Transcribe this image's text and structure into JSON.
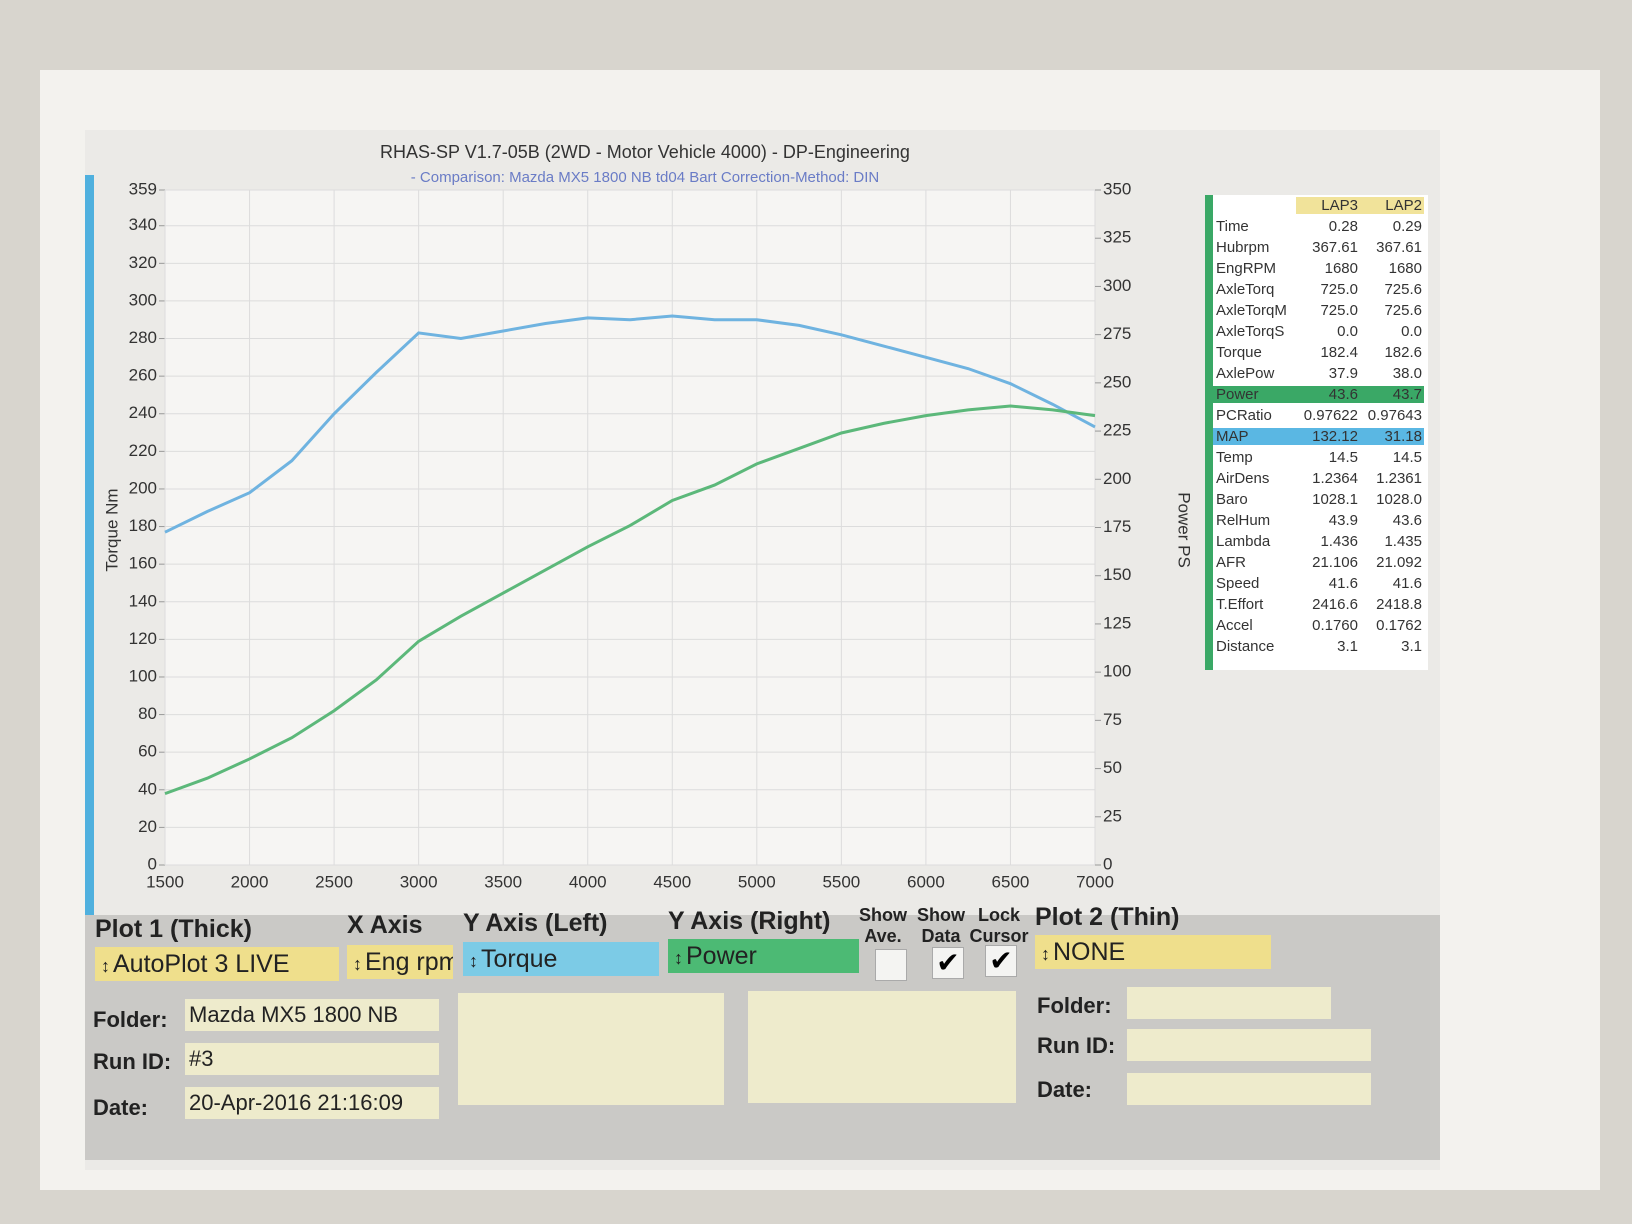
{
  "chart_data": {
    "type": "line",
    "title": "RHAS-SP V1.7-05B  (2WD - Motor Vehicle 4000) - DP-Engineering",
    "subtitle": "- Comparison: Mazda MX5 1800 NB td04 Bart   Correction-Method: DIN",
    "y_label": "Torque Nm",
    "y2_label": "Power PS",
    "x": [
      1500,
      1750,
      2000,
      2250,
      2500,
      2750,
      3000,
      3250,
      3500,
      3750,
      4000,
      4250,
      4500,
      4750,
      5000,
      5250,
      5500,
      5750,
      6000,
      6250,
      6500,
      6750,
      7000
    ],
    "series": [
      {
        "name": "Torque",
        "color": "#6fb3e0",
        "values": [
          177,
          188,
          198,
          215,
          240,
          262,
          283,
          280,
          284,
          288,
          291,
          290,
          292,
          290,
          290,
          287,
          282,
          276,
          270,
          264,
          256,
          245,
          233
        ]
      },
      {
        "name": "Power",
        "color": "#5cb87a",
        "axis": "y2",
        "values": [
          37,
          45,
          55,
          66,
          80,
          96,
          116,
          129,
          141,
          153,
          165,
          176,
          189,
          197,
          208,
          216,
          224,
          229,
          233,
          236,
          238,
          236,
          233
        ]
      }
    ],
    "xlim": [
      1500,
      7000
    ],
    "xticks": [
      1500,
      2000,
      2500,
      3000,
      3500,
      4000,
      4500,
      5000,
      5500,
      6000,
      6500,
      7000
    ],
    "ylim": [
      0,
      359
    ],
    "yticks": [
      0,
      20,
      40,
      60,
      80,
      100,
      120,
      140,
      160,
      180,
      200,
      220,
      240,
      260,
      280,
      300,
      320,
      340,
      359
    ],
    "y2lim": [
      0,
      350
    ],
    "y2ticks": [
      0,
      25,
      50,
      75,
      100,
      125,
      150,
      175,
      200,
      225,
      250,
      275,
      300,
      325,
      350
    ],
    "grid": true
  },
  "table": {
    "headers": [
      "LAP3",
      "LAP2"
    ],
    "rows": [
      [
        "Time",
        "0.28",
        "0.29"
      ],
      [
        "Hubrpm",
        "367.61",
        "367.61"
      ],
      [
        "EngRPM",
        "1680",
        "1680"
      ],
      [
        "AxleTorq",
        "725.0",
        "725.6"
      ],
      [
        "AxleTorqM",
        "725.0",
        "725.6"
      ],
      [
        "AxleTorqS",
        "0.0",
        "0.0"
      ],
      [
        "Torque",
        "182.4",
        "182.6"
      ],
      [
        "AxlePow",
        "37.9",
        "38.0"
      ],
      [
        "Power",
        "43.6",
        "43.7"
      ],
      [
        "PCRatio",
        "0.97622",
        "0.97643"
      ],
      [
        "MAP",
        "132.12",
        "31.18"
      ],
      [
        "Temp",
        "14.5",
        "14.5"
      ],
      [
        "AirDens",
        "1.2364",
        "1.2361"
      ],
      [
        "Baro",
        "1028.1",
        "1028.0"
      ],
      [
        "RelHum",
        "43.9",
        "43.6"
      ],
      [
        "Lambda",
        "1.436",
        "1.435"
      ],
      [
        "AFR",
        "21.106",
        "21.092"
      ],
      [
        "Speed",
        "41.6",
        "41.6"
      ],
      [
        "T.Effort",
        "2416.6",
        "2418.8"
      ],
      [
        "Accel",
        "0.1760",
        "0.1762"
      ],
      [
        "Distance",
        "3.1",
        "3.1"
      ]
    ]
  },
  "controls": {
    "plot1": {
      "label": "Plot 1 (Thick)",
      "value": "AutoPlot 3 LIVE"
    },
    "x_axis": {
      "label": "X Axis",
      "value": "Eng rpm"
    },
    "y_left": {
      "label": "Y Axis (Left)",
      "value": "Torque"
    },
    "y_right": {
      "label": "Y Axis (Right)",
      "value": "Power"
    },
    "show_ave": {
      "label": "Show Ave.",
      "checked": false
    },
    "show_data": {
      "label": "Show Data",
      "checked": true
    },
    "lock_cursor": {
      "label": "Lock Cursor",
      "checked": true
    },
    "plot2": {
      "label": "Plot 2 (Thin)",
      "value": "NONE"
    }
  },
  "run1": {
    "folder_label": "Folder:",
    "folder": "Mazda MX5 1800 NB",
    "run_label": "Run ID:",
    "run": "#3",
    "date_label": "Date:",
    "date": "20-Apr-2016  21:16:09"
  },
  "run2": {
    "folder_label": "Folder:",
    "run_label": "Run ID:",
    "date_label": "Date:"
  }
}
